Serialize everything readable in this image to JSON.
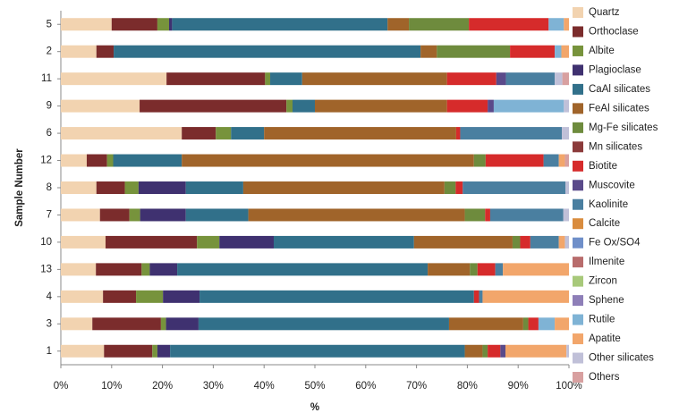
{
  "chart_data": {
    "type": "stacked_barh",
    "x_label": "%",
    "y_label": "Sample Number",
    "categories": [
      "5",
      "2",
      "11",
      "9",
      "6",
      "12",
      "8",
      "7",
      "10",
      "13",
      "4",
      "3",
      "1"
    ],
    "xlim": [
      0,
      100
    ],
    "xticks": [
      {
        "value": 0,
        "label": "0%"
      },
      {
        "value": 10,
        "label": "10%"
      },
      {
        "value": 20,
        "label": "20%"
      },
      {
        "value": 30,
        "label": "30%"
      },
      {
        "value": 40,
        "label": "40%"
      },
      {
        "value": 50,
        "label": "50%"
      },
      {
        "value": 60,
        "label": "60%"
      },
      {
        "value": 70,
        "label": "70%"
      },
      {
        "value": 80,
        "label": "80%"
      },
      {
        "value": 90,
        "label": "90%"
      },
      {
        "value": 100,
        "label": "100%"
      }
    ],
    "legend": "right",
    "series": [
      {
        "name": "Quartz",
        "color": "#f2d3b0",
        "values": [
          10,
          7,
          20.8,
          15.5,
          23.8,
          5.1,
          7,
          7.7,
          8.8,
          6.9,
          8.3,
          6.2,
          8.5
        ]
      },
      {
        "name": "Orthoclase",
        "color": "#7b2c2c",
        "values": [
          9,
          3.4,
          19.4,
          28.9,
          6.7,
          4,
          5.6,
          5.8,
          18,
          9,
          6.5,
          13.5,
          9.5
        ]
      },
      {
        "name": "Albite",
        "color": "#77933c",
        "values": [
          2.3,
          0,
          1,
          1.2,
          3,
          1.2,
          2.7,
          2.1,
          4.4,
          1.6,
          5.3,
          1,
          1
        ]
      },
      {
        "name": "Plagioclase",
        "color": "#3f3170",
        "values": [
          0.6,
          0,
          0,
          0,
          0,
          0,
          9.3,
          9,
          10.7,
          5.4,
          7.2,
          6.4,
          2.5
        ]
      },
      {
        "name": "CaAl silicates",
        "color": "#31708a",
        "values": [
          42.4,
          60.4,
          6.3,
          4.4,
          6.5,
          13.5,
          11.3,
          12.3,
          27.6,
          49.3,
          54,
          49.3,
          58
        ]
      },
      {
        "name": "FeAl silicates",
        "color": "#a0642a",
        "values": [
          4.2,
          3.2,
          28.5,
          26,
          37.8,
          57.5,
          39.6,
          42.6,
          19.4,
          8.3,
          0,
          14.6,
          3.5
        ]
      },
      {
        "name": "Mg-Fe silicates",
        "color": "#6e8b3d",
        "values": [
          11.8,
          14.4,
          0,
          0,
          0,
          2.3,
          2.2,
          4,
          1.5,
          1.5,
          0,
          1,
          1
        ]
      },
      {
        "name": "Mn silicates",
        "color": "#8b3a3a",
        "values": [
          0,
          0,
          0,
          0,
          0,
          0,
          0,
          0,
          0,
          0,
          0,
          0,
          0
        ]
      },
      {
        "name": "Biotite",
        "color": "#d62b2b",
        "values": [
          15.7,
          8.8,
          9.7,
          8,
          0.8,
          11.4,
          1.4,
          1,
          2,
          3.5,
          1,
          2,
          2.5
        ]
      },
      {
        "name": "Muscovite",
        "color": "#5a4a8a",
        "values": [
          0,
          0,
          1.9,
          1.2,
          0,
          0,
          0,
          0,
          0,
          0,
          0,
          0,
          1
        ]
      },
      {
        "name": "Kaolinite",
        "color": "#4a7fa0",
        "values": [
          0,
          0,
          9.6,
          0,
          20,
          3,
          20.2,
          14.4,
          5.6,
          1.5,
          0.7,
          0,
          0
        ]
      },
      {
        "name": "Calcite",
        "color": "#d98c3e",
        "values": [
          0,
          0,
          0,
          0,
          0,
          0,
          0,
          0,
          0,
          0,
          0,
          0,
          0
        ]
      },
      {
        "name": "Fe Ox/SO4",
        "color": "#6f8fc9",
        "values": [
          0,
          0,
          0,
          0,
          0,
          0,
          0,
          0,
          0,
          0,
          0,
          0,
          0
        ]
      },
      {
        "name": "Ilmenite",
        "color": "#b86c6c",
        "values": [
          0,
          0,
          0,
          0,
          0,
          0,
          0,
          0,
          0,
          0,
          0,
          0,
          0
        ]
      },
      {
        "name": "Zircon",
        "color": "#a8c97a",
        "values": [
          0,
          0,
          0,
          0,
          0,
          0,
          0,
          0,
          0,
          0,
          0,
          0,
          0
        ]
      },
      {
        "name": "Sphene",
        "color": "#8e7fb8",
        "values": [
          0,
          0,
          0,
          0,
          0,
          0,
          0,
          0,
          0,
          0,
          0,
          0,
          0
        ]
      },
      {
        "name": "Rutile",
        "color": "#7fb3d5",
        "values": [
          3,
          1.3,
          0,
          13.8,
          0,
          0,
          0,
          0,
          0,
          0,
          0,
          3.2,
          0
        ]
      },
      {
        "name": "Apatite",
        "color": "#f2a66b",
        "values": [
          1,
          1.5,
          0,
          0,
          0,
          1.2,
          0,
          0,
          1.2,
          13,
          17,
          2.8,
          12
        ]
      },
      {
        "name": "Other silicates",
        "color": "#c0c0d8",
        "values": [
          0,
          0,
          1.5,
          1,
          1.4,
          0,
          0.7,
          1.1,
          0.8,
          0,
          0,
          0,
          0.5
        ]
      },
      {
        "name": "Others",
        "color": "#d8a0a0",
        "values": [
          0,
          0,
          1.3,
          0,
          0,
          0.8,
          0,
          0,
          0,
          0,
          0,
          0,
          0
        ]
      }
    ]
  }
}
